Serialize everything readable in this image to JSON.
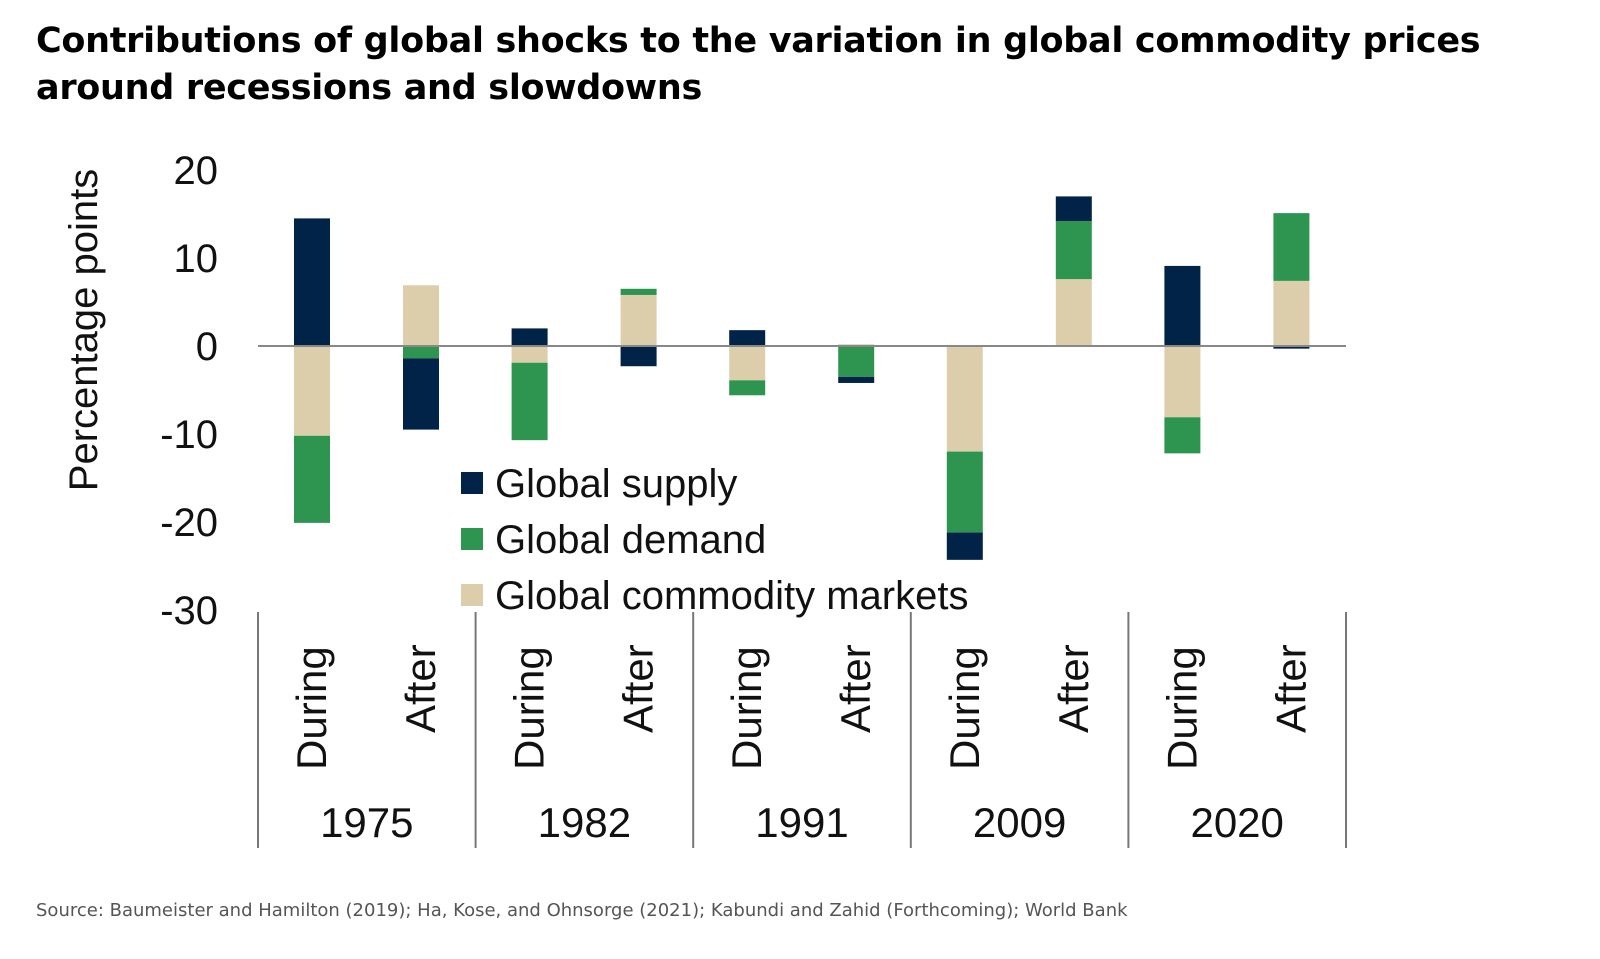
{
  "title": "Contributions of global shocks to the variation in global commodity prices around recessions and slowdowns",
  "source": "Source: Baumeister and Hamilton (2019); Ha, Kose, and Ohnsorge (2021); Kabundi and Zahid (Forthcoming); World Bank",
  "chart_data": {
    "type": "bar",
    "stacked": true,
    "ylabel": "Percentage points",
    "ylim": [
      -30,
      20
    ],
    "yticks": [
      20,
      10,
      0,
      -10,
      -20,
      -30
    ],
    "groups": [
      "1975",
      "1982",
      "1991",
      "2009",
      "2020"
    ],
    "subcategories": [
      "During",
      "After"
    ],
    "categories": [
      "1975 During",
      "1975 After",
      "1982 During",
      "1982 After",
      "1991 During",
      "1991 After",
      "2009 During",
      "2009 After",
      "2020 During",
      "2020 After"
    ],
    "legend_position": "center-left inside",
    "grid": false,
    "series": [
      {
        "name": "Global supply",
        "color": "#002347",
        "values": [
          14.5,
          -8.1,
          2.0,
          -2.3,
          1.8,
          -0.7,
          -3.1,
          2.8,
          9.1,
          -0.3
        ]
      },
      {
        "name": "Global demand",
        "color": "#2e9550",
        "values": [
          -9.9,
          -1.4,
          -8.8,
          0.7,
          -1.7,
          -3.5,
          -9.2,
          6.6,
          -4.1,
          7.7
        ]
      },
      {
        "name": "Global commodity markets",
        "color": "#dccdab",
        "values": [
          -10.2,
          6.9,
          -1.9,
          5.8,
          -3.9,
          0.2,
          -12.0,
          7.6,
          -8.1,
          7.4
        ]
      }
    ]
  }
}
